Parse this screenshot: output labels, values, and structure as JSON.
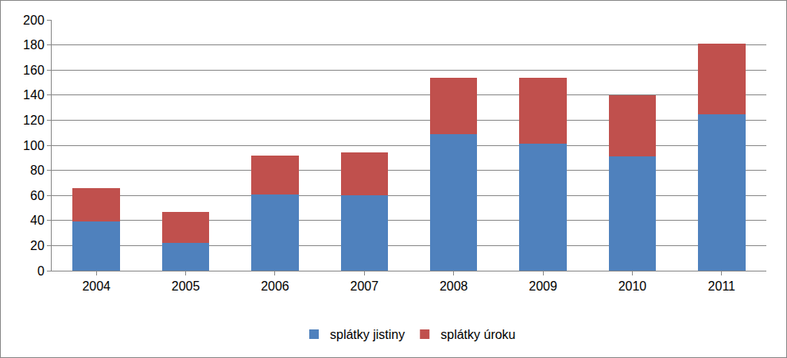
{
  "chart_data": {
    "type": "bar",
    "stacked": true,
    "categories": [
      "2004",
      "2005",
      "2006",
      "2007",
      "2008",
      "2009",
      "2010",
      "2011"
    ],
    "series": [
      {
        "name": "splátky jistiny",
        "color": "#4f81bd",
        "values": [
          39,
          22,
          61,
          60,
          109,
          101,
          91,
          125
        ]
      },
      {
        "name": "splátky úroku",
        "color": "#c0504d",
        "values": [
          27,
          25,
          31,
          34,
          45,
          53,
          49,
          56
        ]
      }
    ],
    "ylim": [
      0,
      200
    ],
    "yticks": [
      0,
      20,
      40,
      60,
      80,
      100,
      120,
      140,
      160,
      180,
      200
    ],
    "grid": true,
    "legend": "bottom"
  }
}
